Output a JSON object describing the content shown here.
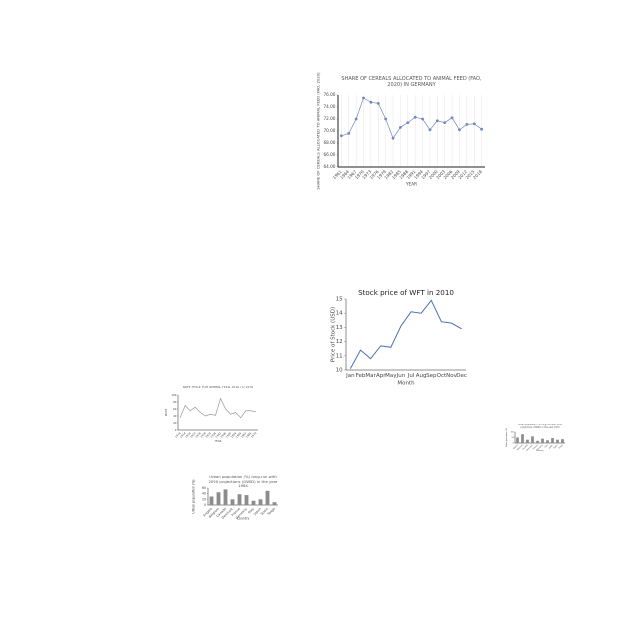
{
  "chart_data": [
    {
      "type": "line",
      "title": "SHARE OF CEREALS ALLOCATED TO ANIMAL FEED (FAO, 2020)  IN GERMANY",
      "x_label": "YEAR",
      "y_label": "SHARE OF CEREALS ALLOCATED TO ANIMAL FEED (FAO, 2020)",
      "categories": [
        "1961",
        "1964",
        "1967",
        "1970",
        "1973",
        "1976",
        "1979",
        "1982",
        "1985",
        "1988",
        "1991",
        "1994",
        "1997",
        "2000",
        "2003",
        "2006",
        "2009",
        "2012",
        "2015",
        "2018"
      ],
      "values": [
        69.2,
        69.6,
        72,
        75.5,
        74.8,
        74.6,
        72,
        68.8,
        70.6,
        71.4,
        72.3,
        72,
        70.2,
        71.7,
        71.4,
        72.2,
        70.2,
        71.1,
        71.2,
        70.3
      ],
      "color": "#7088c0",
      "markers": true,
      "grid": true,
      "ylim": [
        64,
        76
      ],
      "yticks": [
        {
          "value": 64,
          "label": "64.00"
        },
        {
          "value": 66,
          "label": "66.00"
        },
        {
          "value": 68,
          "label": "68.00"
        },
        {
          "value": 70,
          "label": "70.00"
        },
        {
          "value": 72,
          "label": "72.00"
        },
        {
          "value": 74,
          "label": "74.00"
        },
        {
          "value": 76,
          "label": "76.00"
        }
      ]
    },
    {
      "type": "line",
      "title": "Stock price of WFT in 2010",
      "x_label": "Month",
      "y_label": "Price of Stock (USD)",
      "categories": [
        "Jan",
        "Feb",
        "Mar",
        "Apr",
        "May",
        "Jun",
        "Jul",
        "Aug",
        "Sep",
        "Oct",
        "Nov",
        "Dec"
      ],
      "values": [
        10.1,
        11.4,
        10.8,
        11.7,
        11.6,
        13.1,
        14.1,
        14.0,
        14.9,
        13.4,
        13.3,
        12.9
      ],
      "color": "#4a6fb5",
      "markers": false,
      "grid": false,
      "ylim": [
        10,
        15
      ],
      "yticks": [
        10,
        11,
        12,
        13,
        14,
        15
      ]
    },
    {
      "type": "line",
      "title": "RAPE PRICE FOR ANIMAL FEED 1910 TO 1970",
      "x_label": "YEAR",
      "y_label": "PRICE",
      "categories": [
        "1910",
        "1914",
        "1918",
        "1922",
        "1926",
        "1930",
        "1934",
        "1938",
        "1942",
        "1946",
        "1950",
        "1954",
        "1958",
        "1962",
        "1966",
        "1970"
      ],
      "values": [
        35,
        70,
        55,
        65,
        50,
        40,
        45,
        42,
        90,
        60,
        45,
        50,
        35,
        55,
        55,
        52
      ],
      "color": "#999999",
      "markers": false,
      "grid": false,
      "ylim": [
        0,
        100
      ],
      "yticks": [
        0,
        20,
        40,
        60,
        80,
        100
      ]
    },
    {
      "type": "bar",
      "title": "Urban population (%) long-run with 2050 projections (OWID) in the year 1984",
      "x_label": "Country",
      "y_label": "Urban population (%)",
      "categories": [
        "Angola",
        "Belgium",
        "Canada",
        "Denmark",
        "France",
        "Germany",
        "Italy",
        "Japan",
        "Spain",
        "Tonga"
      ],
      "values": [
        30,
        45,
        55,
        20,
        38,
        35,
        15,
        20,
        50,
        10
      ],
      "color": "#8c8c8c",
      "grid": false,
      "ylim": [
        0,
        60
      ],
      "yticks": [
        0,
        20,
        40,
        60
      ]
    },
    {
      "type": "bar",
      "title": "Urban population (%) long-run with 2050 projections (OWID) in the year 1974",
      "x_label": "Country",
      "y_label": "Urban population (%)",
      "categories": [
        "Angola",
        "Belgium",
        "Canada",
        "Denmark",
        "France",
        "Germany",
        "Italy",
        "Japan",
        "Spain",
        "Tonga"
      ],
      "values": [
        50,
        80,
        30,
        60,
        20,
        40,
        25,
        45,
        30,
        35
      ],
      "color": "#8c8c8c",
      "grid": false,
      "ylim": [
        0,
        100
      ],
      "yticks": [
        0,
        50,
        100
      ]
    }
  ]
}
